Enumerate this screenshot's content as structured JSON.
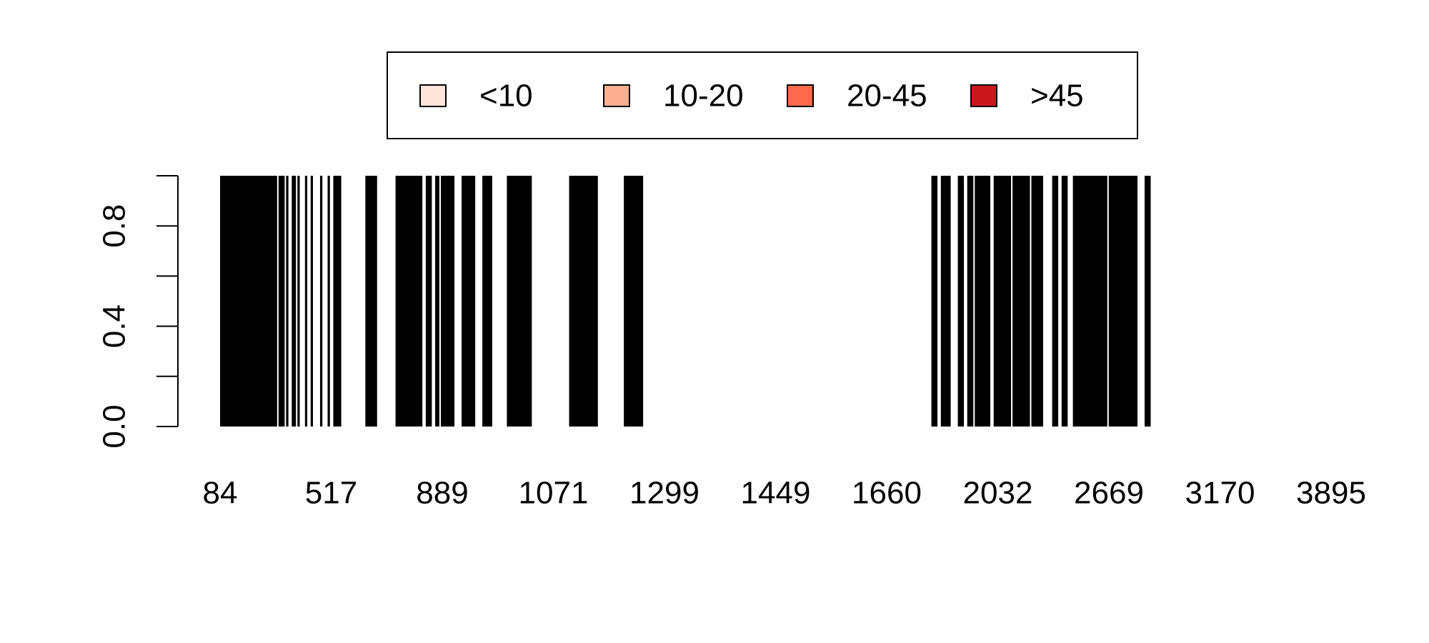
{
  "chart_data": {
    "type": "bar",
    "title": "",
    "xlabel": "",
    "ylabel": "",
    "ylim": [
      0,
      1
    ],
    "y_ticks": [
      0.0,
      0.2,
      0.4,
      0.6,
      0.8,
      1.0
    ],
    "y_tick_labels": [
      "0.0",
      "0.4",
      "0.8"
    ],
    "x_tick_labels": [
      "84",
      "517",
      "889",
      "1071",
      "1299",
      "1449",
      "1660",
      "2032",
      "2669",
      "3170",
      "3895"
    ],
    "legend": {
      "placement": "top",
      "entries": [
        {
          "label": "<10",
          "color": "#FEE5D9"
        },
        {
          "label": "10-20",
          "color": "#FCAE91"
        },
        {
          "label": "20-45",
          "color": "#FB6A4A"
        },
        {
          "label": ">45",
          "color": "#CB181D"
        }
      ]
    },
    "bar_color": "#000000",
    "values": [
      1,
      1,
      1,
      1,
      1,
      1,
      1,
      1,
      1,
      1,
      1,
      1,
      1,
      1,
      1,
      1,
      1,
      1,
      1,
      1,
      1,
      1,
      1,
      1,
      1,
      1,
      1,
      1,
      1,
      1,
      0,
      1,
      1,
      1,
      0,
      1,
      0,
      0,
      1,
      1,
      0,
      1,
      0,
      0,
      0,
      1,
      0,
      0,
      1,
      0,
      0,
      0,
      0,
      1,
      0,
      0,
      0,
      1,
      0,
      0,
      1,
      1,
      1,
      1,
      0,
      0,
      0,
      0,
      0,
      0,
      0,
      0,
      0,
      0,
      0,
      0,
      0,
      1,
      1,
      1,
      1,
      1,
      1,
      0,
      0,
      0,
      0,
      0,
      0,
      0,
      0,
      0,
      0,
      1,
      1,
      1,
      1,
      1,
      1,
      1,
      1,
      1,
      1,
      1,
      1,
      1,
      1,
      0,
      0,
      1,
      1,
      1,
      0,
      0,
      1,
      1,
      0,
      1,
      1,
      1,
      1,
      1,
      1,
      1,
      0,
      0,
      0,
      0,
      1,
      1,
      1,
      1,
      1,
      1,
      1,
      0,
      0,
      0,
      0,
      1,
      1,
      1,
      1,
      1,
      0,
      0,
      0,
      0,
      0,
      0,
      0,
      0,
      1,
      1,
      1,
      1,
      1,
      1,
      1,
      1,
      1,
      1,
      1,
      1,
      1,
      0,
      0,
      0,
      0,
      0,
      0,
      0,
      0,
      0,
      0,
      0,
      0,
      0,
      0,
      0,
      0,
      0,
      0,
      0,
      0,
      1,
      1,
      1,
      1,
      1,
      1,
      1,
      1,
      1,
      1,
      1,
      1,
      1,
      1,
      1,
      0,
      0,
      0,
      0,
      0,
      0,
      0,
      0,
      0,
      0,
      0,
      0,
      0,
      0,
      1,
      1,
      1,
      1,
      1,
      1,
      1,
      1,
      1,
      1,
      0,
      0,
      0,
      0,
      0,
      0,
      0,
      0,
      0,
      0,
      0,
      0,
      0,
      0,
      0,
      0,
      0,
      0,
      0,
      0,
      0,
      0,
      0,
      0,
      0,
      0,
      0,
      0,
      0,
      0,
      0,
      0,
      0,
      0,
      0,
      0,
      0,
      0,
      0,
      0,
      0,
      0,
      0,
      0,
      0,
      0,
      0,
      0,
      0,
      0,
      0,
      0,
      0,
      0,
      0,
      0,
      0,
      0,
      0,
      0,
      0,
      0,
      0,
      0,
      0,
      0,
      0,
      0,
      0,
      0,
      0,
      0,
      0,
      0,
      0,
      0,
      0,
      0,
      0,
      0,
      0,
      0,
      0,
      0,
      0,
      0,
      0,
      0,
      0,
      0,
      0,
      0,
      0,
      0,
      0,
      0,
      0,
      0,
      0,
      0,
      0,
      0,
      0,
      0,
      0,
      0,
      0,
      0,
      0,
      0,
      0,
      0,
      0,
      0,
      0,
      0,
      0,
      0,
      0,
      0,
      0,
      0,
      0,
      0,
      0,
      0,
      0,
      0,
      0,
      0,
      0,
      0,
      0,
      0,
      0,
      0,
      0,
      0,
      0,
      0,
      0,
      0,
      0,
      0,
      0,
      0,
      0,
      0,
      0,
      0,
      0,
      0,
      0,
      1,
      1,
      1,
      0,
      0,
      1,
      1,
      1,
      1,
      1,
      0,
      0,
      0,
      0,
      1,
      1,
      1,
      0,
      0,
      1,
      1,
      1,
      0,
      1,
      1,
      1,
      1,
      1,
      1,
      1,
      1,
      0,
      0,
      1,
      1,
      1,
      1,
      1,
      1,
      1,
      1,
      1,
      0,
      1,
      1,
      1,
      1,
      1,
      1,
      1,
      1,
      1,
      0,
      1,
      1,
      1,
      1,
      1,
      1,
      0,
      0,
      0,
      0,
      0,
      1,
      1,
      1,
      0,
      0,
      1,
      1,
      1,
      0,
      0,
      0,
      1,
      1,
      1,
      1,
      1,
      1,
      1,
      1,
      1,
      1,
      1,
      1,
      1,
      1,
      1,
      1,
      1,
      1,
      0,
      1,
      1,
      1,
      1,
      1,
      1,
      1,
      1,
      1,
      1,
      1,
      1,
      1,
      1,
      1,
      0,
      0,
      0,
      0,
      1,
      1,
      1,
      0,
      0,
      0,
      0,
      0,
      0,
      0,
      0,
      0,
      0,
      0,
      0,
      0,
      0,
      0,
      0,
      0,
      0,
      0,
      0,
      0,
      0,
      0,
      0,
      0,
      0,
      0,
      0,
      0,
      0,
      0,
      0,
      0,
      0,
      0,
      0,
      0,
      0,
      0,
      0,
      0,
      0,
      0,
      0,
      0,
      0,
      0
    ]
  }
}
